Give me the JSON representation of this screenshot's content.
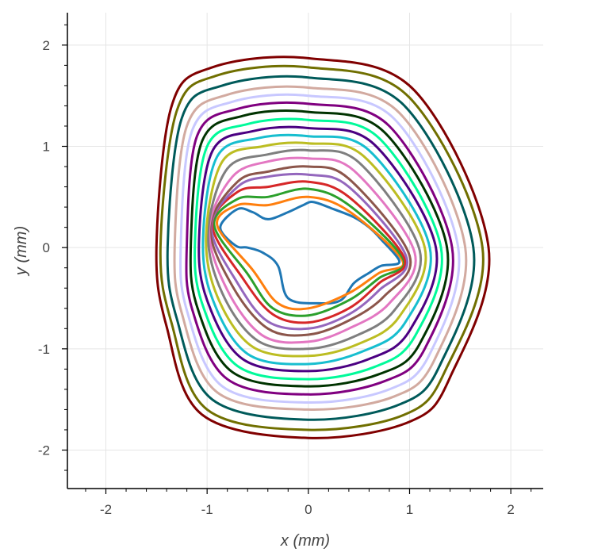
{
  "chart_data": {
    "type": "line",
    "xlabel": "x (mm)",
    "ylabel": "y (mm)",
    "xlim": [
      -2.38,
      2.32
    ],
    "ylim": [
      -2.38,
      2.32
    ],
    "x_ticks": [
      "-2",
      "-1",
      "0",
      "1",
      "2"
    ],
    "y_ticks": [
      "2",
      "1",
      "0",
      "-1",
      "-2"
    ],
    "grid": true,
    "legend": "none",
    "series": [
      {
        "color": "#1f77b4",
        "x": [
          -0.87,
          -0.7,
          -0.55,
          -0.4,
          -0.2,
          -0.05,
          0.05,
          0.25,
          0.45,
          0.6,
          0.72,
          0.9,
          0.72,
          0.6,
          0.45,
          0.32,
          0.1,
          -0.2,
          -0.3,
          -0.45,
          -0.6,
          -0.72,
          -0.87
        ],
        "y": [
          0.2,
          0.38,
          0.35,
          0.28,
          0.35,
          0.42,
          0.45,
          0.38,
          0.3,
          0.2,
          0.08,
          -0.14,
          -0.18,
          -0.25,
          -0.35,
          -0.52,
          -0.55,
          -0.5,
          -0.18,
          -0.05,
          0.0,
          0.02,
          0.2
        ]
      },
      {
        "color": "#ff7f0e",
        "x": [
          -0.9,
          -0.7,
          -0.4,
          0.0,
          0.4,
          0.93,
          0.7,
          0.4,
          0.0,
          -0.3,
          -0.55,
          -0.9
        ],
        "y": [
          0.22,
          0.42,
          0.42,
          0.5,
          0.36,
          -0.13,
          -0.25,
          -0.45,
          -0.6,
          -0.55,
          -0.22,
          0.22
        ]
      },
      {
        "color": "#2ca02c",
        "x": [
          -0.93,
          -0.7,
          -0.4,
          0.0,
          0.4,
          0.94,
          0.7,
          0.4,
          0.0,
          -0.35,
          -0.6,
          -0.93
        ],
        "y": [
          0.22,
          0.48,
          0.5,
          0.58,
          0.42,
          -0.12,
          -0.3,
          -0.52,
          -0.67,
          -0.6,
          -0.26,
          0.22
        ]
      },
      {
        "color": "#d62728",
        "x": [
          -0.95,
          -0.7,
          -0.4,
          0.0,
          0.4,
          0.95,
          0.7,
          0.4,
          0.0,
          -0.35,
          -0.65,
          -0.95
        ],
        "y": [
          0.22,
          0.55,
          0.6,
          0.65,
          0.5,
          -0.11,
          -0.35,
          -0.6,
          -0.74,
          -0.66,
          -0.3,
          0.22
        ]
      },
      {
        "color": "#9467bd",
        "x": [
          -0.96,
          -0.7,
          -0.4,
          0.0,
          0.4,
          0.97,
          0.7,
          0.4,
          0.0,
          -0.4,
          -0.7,
          -0.96
        ],
        "y": [
          0.2,
          0.6,
          0.7,
          0.72,
          0.6,
          -0.1,
          -0.42,
          -0.66,
          -0.8,
          -0.73,
          -0.35,
          0.2
        ]
      },
      {
        "color": "#8c564b",
        "x": [
          -0.97,
          -0.7,
          -0.4,
          0.0,
          0.4,
          1.0,
          0.75,
          0.4,
          0.0,
          -0.4,
          -0.75,
          -0.97
        ],
        "y": [
          0.2,
          0.65,
          0.75,
          0.8,
          0.68,
          -0.08,
          -0.48,
          -0.72,
          -0.86,
          -0.8,
          -0.38,
          0.2
        ]
      },
      {
        "color": "#e377c2",
        "x": [
          -0.98,
          -0.75,
          -0.4,
          0.0,
          0.45,
          1.05,
          0.8,
          0.4,
          0.0,
          -0.45,
          -0.8,
          -0.98
        ],
        "y": [
          0.18,
          0.7,
          0.85,
          0.88,
          0.76,
          -0.05,
          -0.55,
          -0.8,
          -0.93,
          -0.87,
          -0.42,
          0.18
        ]
      },
      {
        "color": "#7f7f7f",
        "x": [
          -0.99,
          -0.8,
          -0.4,
          0.0,
          0.5,
          1.1,
          0.85,
          0.45,
          0.0,
          -0.5,
          -0.85,
          -0.99
        ],
        "y": [
          0.15,
          0.78,
          0.92,
          0.96,
          0.84,
          -0.03,
          -0.62,
          -0.88,
          -1.0,
          -0.92,
          -0.45,
          0.15
        ]
      },
      {
        "color": "#bcbd22",
        "x": [
          -1.01,
          -0.85,
          -0.45,
          0.0,
          0.55,
          1.15,
          0.9,
          0.5,
          0.0,
          -0.55,
          -0.9,
          -1.01
        ],
        "y": [
          0.12,
          0.85,
          1.0,
          1.03,
          0.9,
          0.0,
          -0.68,
          -0.95,
          -1.07,
          -0.98,
          -0.48,
          0.12
        ]
      },
      {
        "color": "#17becf",
        "x": [
          -1.04,
          -0.9,
          -0.5,
          0.0,
          0.6,
          1.2,
          0.95,
          0.55,
          0.0,
          -0.6,
          -0.95,
          -1.04
        ],
        "y": [
          0.1,
          0.9,
          1.08,
          1.1,
          0.96,
          0.0,
          -0.75,
          -1.02,
          -1.15,
          -1.05,
          -0.5,
          0.1
        ]
      },
      {
        "color": "#4b0082",
        "x": [
          -1.08,
          -0.95,
          -0.55,
          0.0,
          0.65,
          1.26,
          1.0,
          0.6,
          0.0,
          -0.65,
          -1.0,
          -1.08
        ],
        "y": [
          0.08,
          0.95,
          1.15,
          1.18,
          1.02,
          0.0,
          -0.82,
          -1.1,
          -1.22,
          -1.1,
          -0.52,
          0.08
        ]
      },
      {
        "color": "#00fa9a",
        "x": [
          -1.12,
          -1.0,
          -0.6,
          0.0,
          0.7,
          1.31,
          1.05,
          0.65,
          0.0,
          -0.7,
          -1.05,
          -1.12
        ],
        "y": [
          0.06,
          1.0,
          1.22,
          1.26,
          1.08,
          0.0,
          -0.88,
          -1.18,
          -1.3,
          -1.17,
          -0.55,
          0.06
        ]
      },
      {
        "color": "#003300",
        "x": [
          -1.16,
          -1.05,
          -0.65,
          0.0,
          0.75,
          1.37,
          1.1,
          0.7,
          0.0,
          -0.75,
          -1.1,
          -1.16
        ],
        "y": [
          0.05,
          1.05,
          1.3,
          1.34,
          1.14,
          0.0,
          -0.95,
          -1.25,
          -1.37,
          -1.23,
          -0.58,
          0.05
        ]
      },
      {
        "color": "#800080",
        "x": [
          -1.2,
          -1.1,
          -0.7,
          0.0,
          0.8,
          1.42,
          1.15,
          0.75,
          0.0,
          -0.8,
          -1.15,
          -1.2
        ],
        "y": [
          0.04,
          1.1,
          1.37,
          1.42,
          1.2,
          0.0,
          -1.0,
          -1.32,
          -1.45,
          -1.3,
          -0.6,
          0.04
        ]
      },
      {
        "color": "#c8c8ff",
        "x": [
          -1.26,
          -1.15,
          -0.75,
          0.0,
          0.85,
          1.48,
          1.2,
          0.8,
          0.0,
          -0.85,
          -1.2,
          -1.26
        ],
        "y": [
          0.03,
          1.15,
          1.44,
          1.5,
          1.27,
          0.0,
          -1.05,
          -1.4,
          -1.53,
          -1.37,
          -0.62,
          0.03
        ]
      },
      {
        "color": "#d2aaa0",
        "x": [
          -1.32,
          -1.2,
          -0.8,
          0.0,
          0.9,
          1.55,
          1.25,
          0.85,
          0.0,
          -0.9,
          -1.25,
          -1.32
        ],
        "y": [
          0.02,
          1.2,
          1.51,
          1.58,
          1.33,
          0.0,
          -1.1,
          -1.47,
          -1.6,
          -1.43,
          -0.65,
          0.02
        ]
      },
      {
        "color": "#005a5a",
        "x": [
          -1.39,
          -1.25,
          -0.85,
          0.0,
          0.95,
          1.63,
          1.3,
          0.9,
          0.0,
          -0.95,
          -1.3,
          -1.39
        ],
        "y": [
          0.01,
          1.28,
          1.6,
          1.68,
          1.4,
          0.0,
          -1.16,
          -1.55,
          -1.7,
          -1.5,
          -0.7,
          0.01
        ]
      },
      {
        "color": "#706f00",
        "x": [
          -1.46,
          -1.3,
          -0.9,
          0.0,
          1.0,
          1.72,
          1.35,
          0.95,
          0.0,
          -1.0,
          -1.35,
          -1.46
        ],
        "y": [
          0.01,
          1.35,
          1.7,
          1.78,
          1.48,
          0.0,
          -1.22,
          -1.65,
          -1.8,
          -1.6,
          -0.75,
          0.01
        ]
      },
      {
        "color": "#800000",
        "x": [
          -1.5,
          -1.35,
          -0.95,
          0.0,
          1.05,
          1.78,
          1.4,
          1.0,
          0.0,
          -1.05,
          -1.4,
          -1.5
        ],
        "y": [
          0.01,
          1.4,
          1.78,
          1.87,
          1.55,
          0.0,
          -1.28,
          -1.72,
          -1.88,
          -1.65,
          -0.78,
          0.01
        ]
      }
    ]
  }
}
